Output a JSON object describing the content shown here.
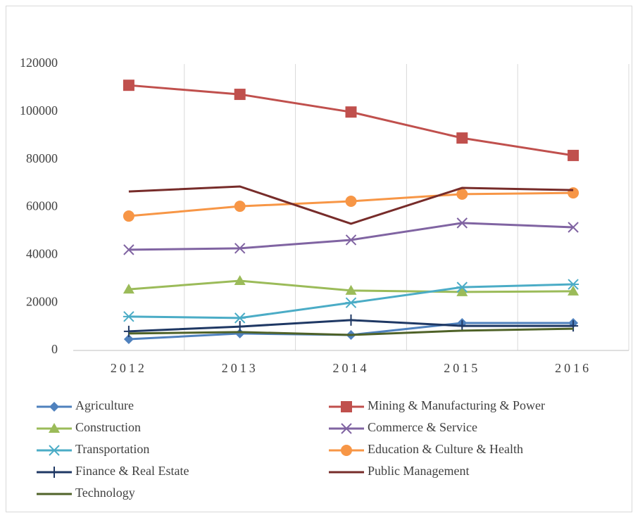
{
  "chart_data": {
    "type": "line",
    "categories": [
      "2012",
      "2013",
      "2014",
      "2015",
      "2016"
    ],
    "ylim": [
      0,
      120000
    ],
    "yticks": [
      0,
      20000,
      40000,
      60000,
      80000,
      100000,
      120000
    ],
    "xgrid": true,
    "series": [
      {
        "name": "Agriculture",
        "color": "#4f81bd",
        "marker": "diamond",
        "values": [
          4700,
          7100,
          6500,
          11500,
          11500
        ]
      },
      {
        "name": "Mining & Manufacturing & Power",
        "color": "#c0504d",
        "marker": "square",
        "values": [
          111100,
          107300,
          99900,
          89000,
          81700
        ]
      },
      {
        "name": "Construction",
        "color": "#9bbb59",
        "marker": "triangle",
        "values": [
          25600,
          29200,
          25100,
          24500,
          24800
        ]
      },
      {
        "name": "Commerce & Service",
        "color": "#8064a2",
        "marker": "x",
        "values": [
          42200,
          42800,
          46300,
          53400,
          51600
        ]
      },
      {
        "name": "Transportation",
        "color": "#4bacc6",
        "marker": "star",
        "values": [
          14200,
          13600,
          20000,
          26500,
          27700
        ]
      },
      {
        "name": "Education & Culture & Health",
        "color": "#f79646",
        "marker": "circle",
        "values": [
          56300,
          60400,
          62500,
          65500,
          66000
        ]
      },
      {
        "name": "Finance & Real Estate",
        "color": "#1f3864",
        "marker": "plus",
        "values": [
          8000,
          10000,
          12700,
          10300,
          10300
        ]
      },
      {
        "name": "Public Management",
        "color": "#772c2a",
        "marker": "none",
        "values": [
          66600,
          68700,
          53100,
          68100,
          67200
        ]
      },
      {
        "name": "Technology",
        "color": "#4f6228",
        "marker": "none",
        "values": [
          7100,
          7700,
          6500,
          8300,
          9100
        ]
      }
    ]
  }
}
